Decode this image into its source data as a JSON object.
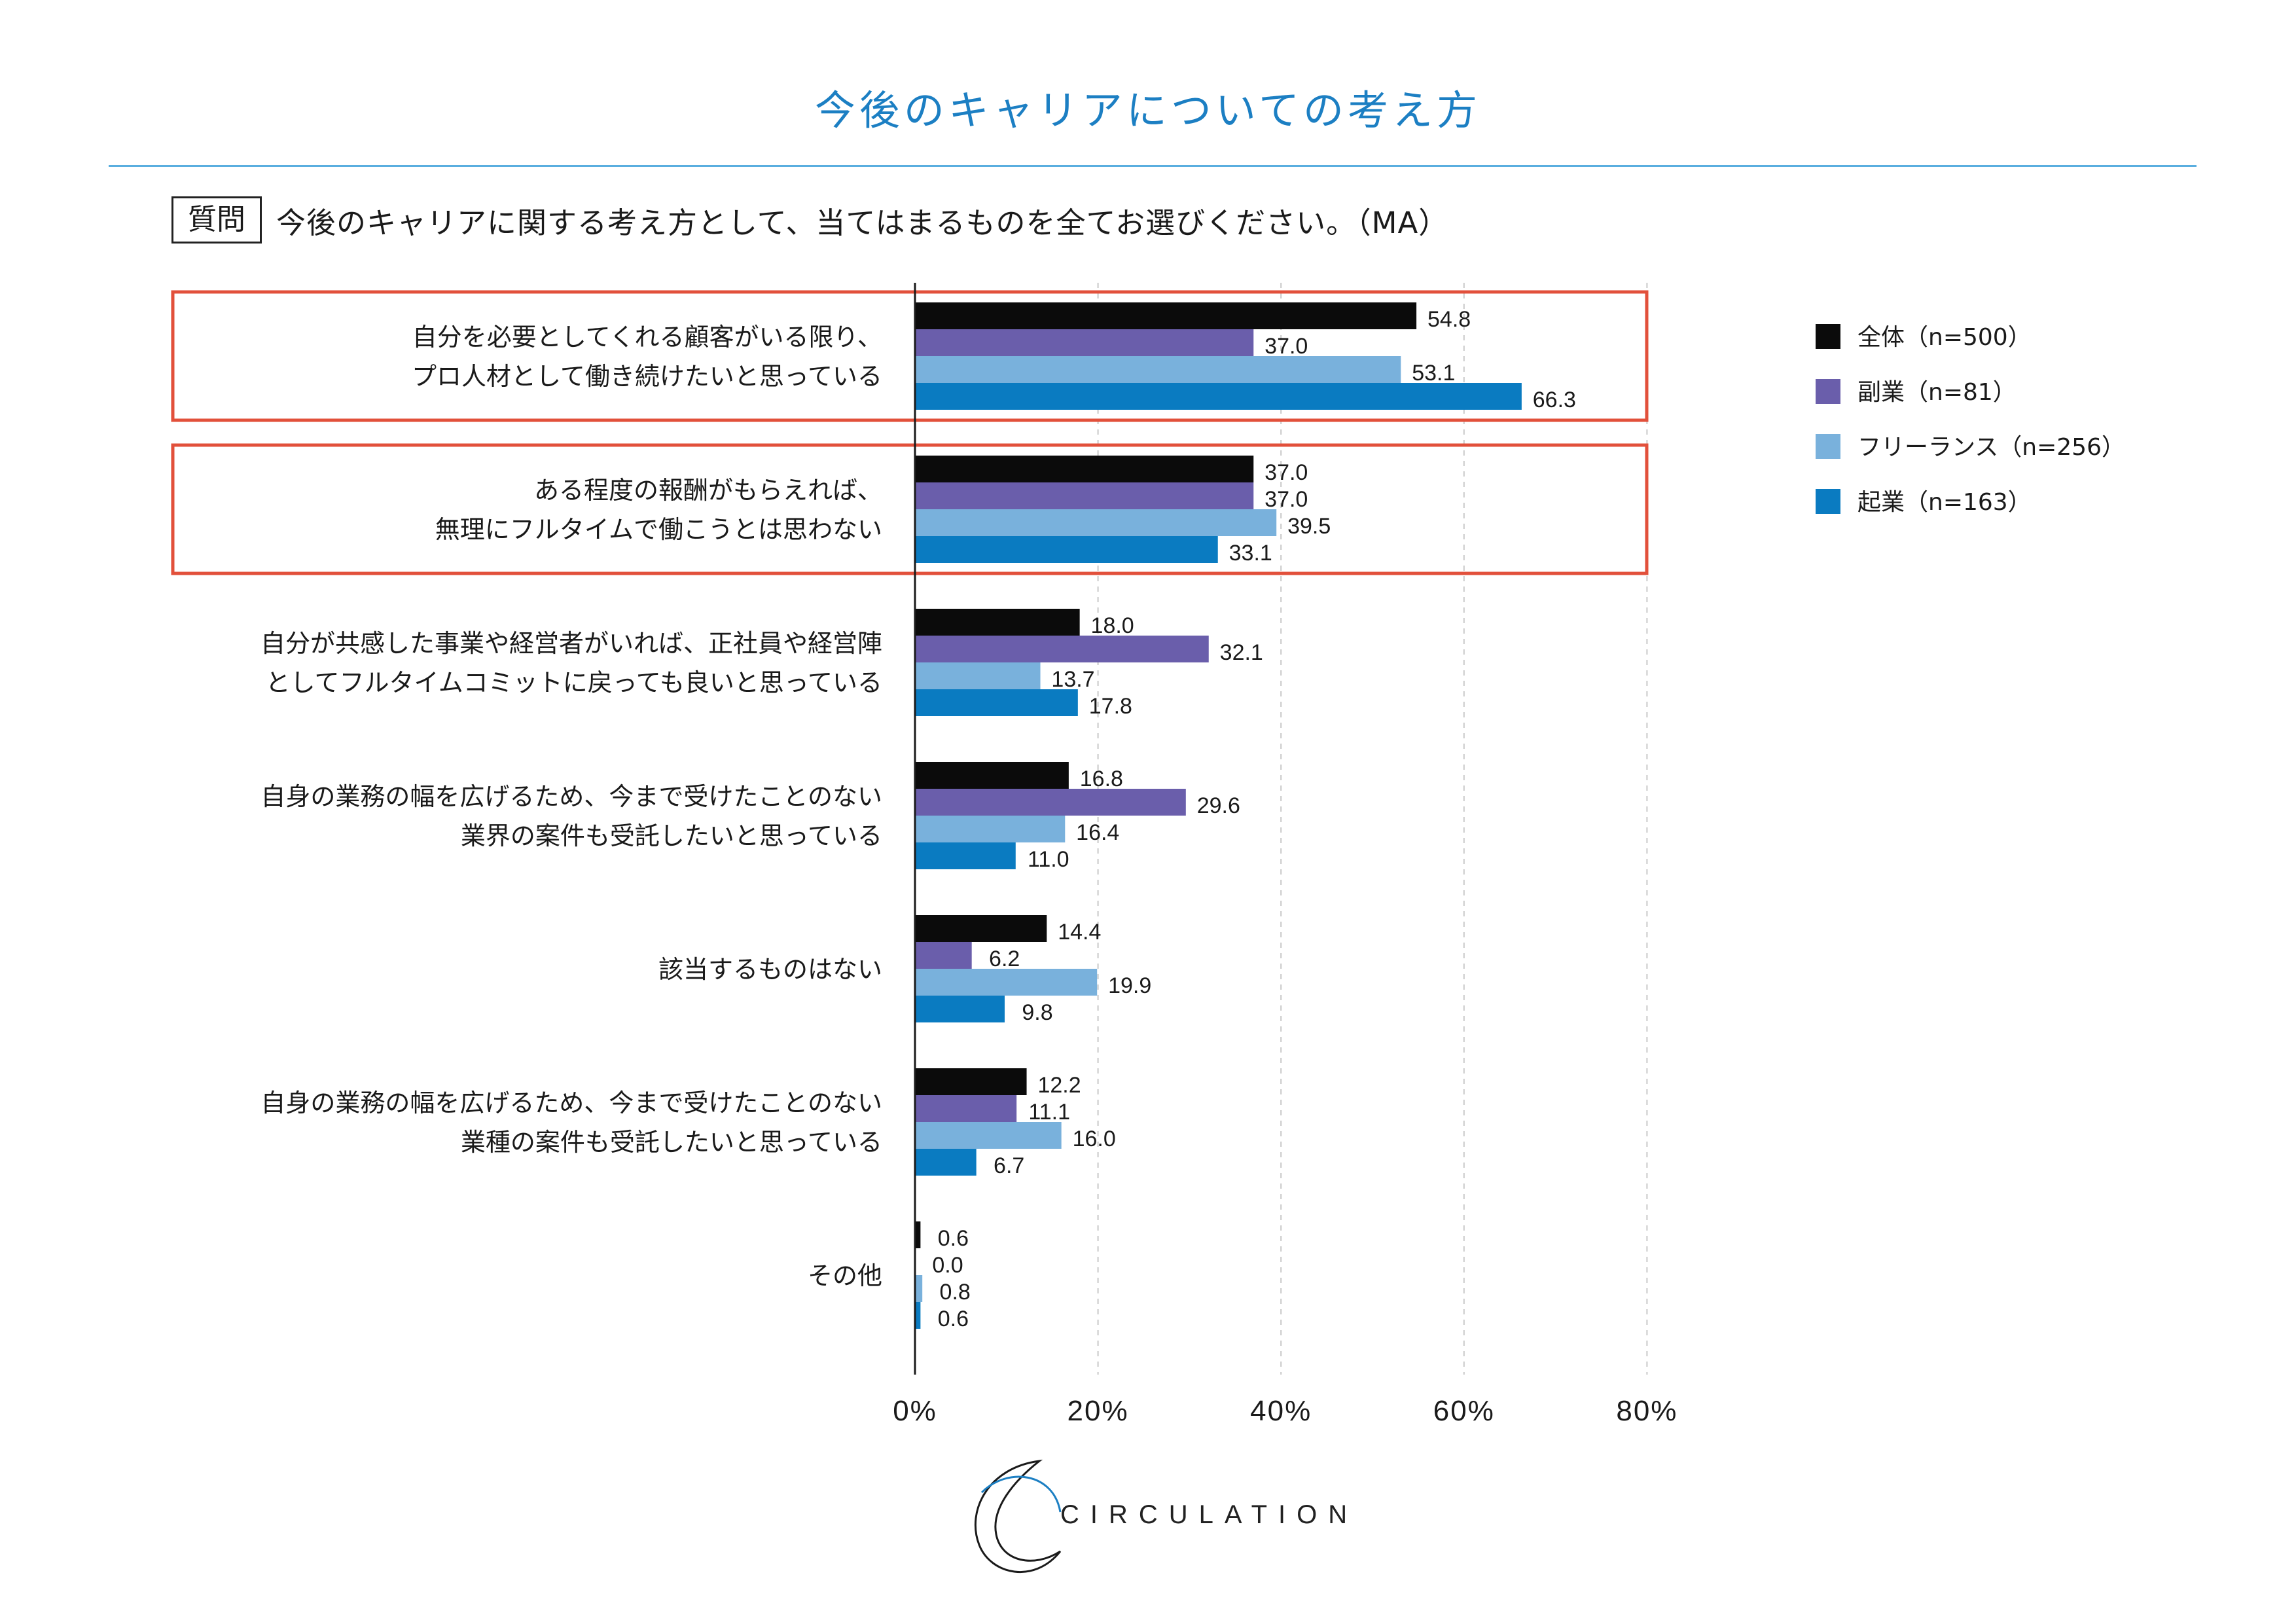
{
  "title": "今後のキャリアについての考え方",
  "question": {
    "badge": "質問",
    "text": "今後のキャリアに関する考え方として、当てはまるものを全てお選びください。（MA）"
  },
  "colors": {
    "accent": "#1c7fc3",
    "highlight_box": "#e2503b",
    "series": [
      "#0b0b0b",
      "#6a5eab",
      "#79b1dc",
      "#0a7bc1"
    ]
  },
  "chart_data": {
    "type": "bar",
    "orientation": "horizontal",
    "categories": [
      [
        "自分を必要としてくれる顧客がいる限り、",
        "プロ人材として働き続けたいと思っている"
      ],
      [
        "ある程度の報酬がもらえれば、",
        "無理にフルタイムで働こうとは思わない"
      ],
      [
        "自分が共感した事業や経営者がいれば、正社員や経営陣",
        "としてフルタイムコミットに戻っても良いと思っている"
      ],
      [
        "自身の業務の幅を広げるため、今まで受けたことのない",
        "業界の案件も受託したいと思っている"
      ],
      [
        "該当するものはない"
      ],
      [
        "自身の業務の幅を広げるため、今まで受けたことのない",
        "業種の案件も受託したいと思っている"
      ],
      [
        "その他"
      ]
    ],
    "series": [
      {
        "name": "全体（n=500）",
        "values": [
          54.8,
          37.0,
          18.0,
          16.8,
          14.4,
          12.2,
          0.6
        ]
      },
      {
        "name": "副業（n=81）",
        "values": [
          37.0,
          37.0,
          32.1,
          29.6,
          6.2,
          11.1,
          0.0
        ]
      },
      {
        "name": "フリーランス（n=256）",
        "values": [
          53.1,
          39.5,
          13.7,
          16.4,
          19.9,
          16.0,
          0.8
        ]
      },
      {
        "name": "起業（n=163）",
        "values": [
          66.3,
          33.1,
          17.8,
          11.0,
          9.8,
          6.7,
          0.6
        ]
      }
    ],
    "value_labels": [
      [
        "54.8",
        "37.0",
        "18.0",
        "16.8",
        "14.4",
        "12.2",
        "0.6"
      ],
      [
        "37.0",
        "37.0",
        "32.1",
        "29.6",
        "6.2",
        "11.1",
        "0.0"
      ],
      [
        "53.1",
        "39.5",
        "13.7",
        "16.4",
        "19.9",
        "16.0",
        "0.8"
      ],
      [
        "66.3",
        "33.1",
        "17.8",
        "11.0",
        "9.8",
        "6.7",
        "0.6"
      ]
    ],
    "xlim": [
      0,
      80
    ],
    "xticks": [
      "0%",
      "20%",
      "40%",
      "60%",
      "80%"
    ],
    "highlighted_categories": [
      0,
      1
    ],
    "grid": "vertical dashed",
    "legend_position": "right"
  },
  "brand": {
    "name": "CIRCULATION"
  }
}
